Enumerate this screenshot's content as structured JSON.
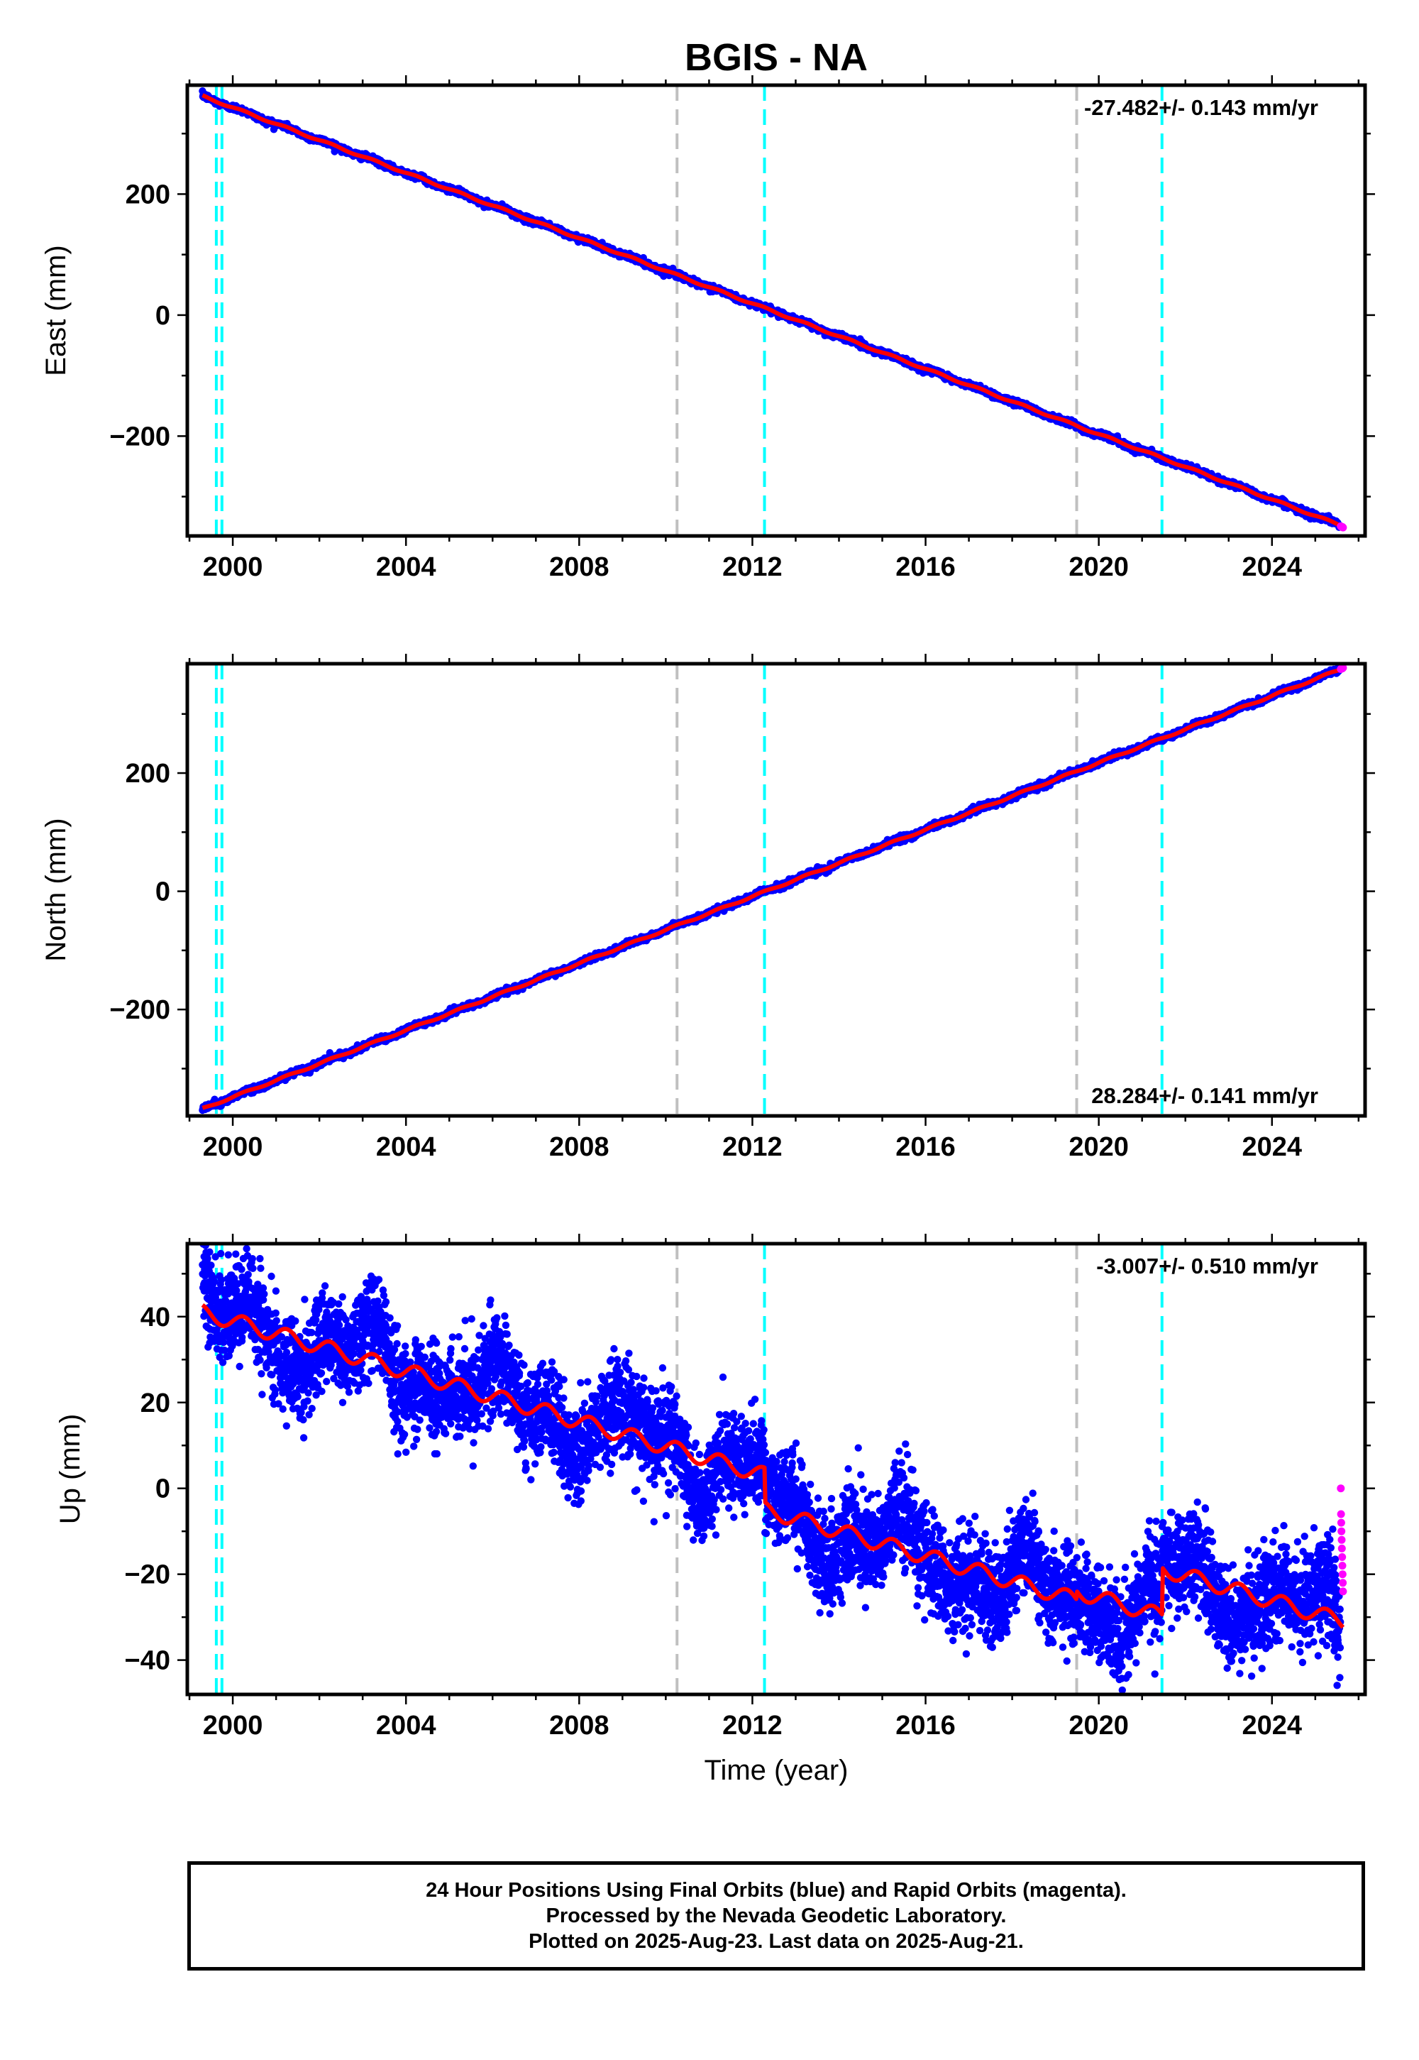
{
  "title": "BGIS - NA",
  "caption": [
    "24 Hour Positions Using Final Orbits (blue) and Rapid Orbits (magenta).",
    "Processed by the Nevada Geodetic Laboratory.",
    "Plotted on 2025-Aug-23. Last data on 2025-Aug-21."
  ],
  "colors": {
    "final_orbits": "#0000ff",
    "rapid_orbits": "#ff00ff",
    "model_fit": "#ff0000",
    "equipment_change_lines": "#00ffff",
    "other_event_lines": "#c0c0c0"
  },
  "chart_data": [
    {
      "type": "scatter",
      "panel": "east",
      "ylabel": "East (mm)",
      "xlabel": "",
      "annotation": "-27.482+/- 0.143 mm/yr",
      "xlim": [
        1998.95,
        2026.15
      ],
      "ylim": [
        -365,
        380
      ],
      "xticks": [
        2000,
        2004,
        2008,
        2012,
        2016,
        2020,
        2024
      ],
      "yticks": [
        -200,
        0,
        200
      ],
      "ytick_labels": [
        "−200",
        "0",
        "200"
      ],
      "x_start": 1999.3,
      "x_end": 2025.64,
      "value_at_start": 362,
      "value_at_end": -349,
      "scatter_noise_mm": 2.5,
      "seasonal_amplitude_mm": 1.5,
      "offsets": [],
      "rapid_values": [
        -349,
        -350,
        -350,
        -351
      ],
      "vertical_lines_cyan": [
        1999.62,
        1999.75,
        2012.28,
        2021.46
      ],
      "vertical_lines_gray": [
        2010.26,
        2019.49
      ],
      "grid": false
    },
    {
      "type": "scatter",
      "panel": "north",
      "ylabel": "North (mm)",
      "xlabel": "",
      "annotation": "28.284+/- 0.141 mm/yr",
      "xlim": [
        1998.95,
        2026.15
      ],
      "ylim": [
        -380,
        385
      ],
      "xticks": [
        2000,
        2004,
        2008,
        2012,
        2016,
        2020,
        2024
      ],
      "yticks": [
        -200,
        0,
        200
      ],
      "ytick_labels": [
        "−200",
        "0",
        "200"
      ],
      "x_start": 1999.3,
      "x_end": 2025.64,
      "value_at_start": -368,
      "value_at_end": 377,
      "scatter_noise_mm": 2.5,
      "seasonal_amplitude_mm": 1.5,
      "offsets": [],
      "rapid_values": [
        376,
        377,
        377,
        378
      ],
      "vertical_lines_cyan": [
        1999.62,
        1999.75,
        2012.28,
        2021.46
      ],
      "vertical_lines_gray": [
        2010.26,
        2019.49
      ],
      "grid": false
    },
    {
      "type": "scatter",
      "panel": "up",
      "ylabel": "Up (mm)",
      "xlabel": "Time (year)",
      "annotation": "-3.007+/- 0.510 mm/yr",
      "xlim": [
        1998.95,
        2026.15
      ],
      "ylim": [
        -48,
        57
      ],
      "xticks": [
        2000,
        2004,
        2008,
        2012,
        2016,
        2020,
        2024
      ],
      "yticks": [
        -40,
        -20,
        0,
        20,
        40
      ],
      "ytick_labels": [
        "−40",
        "−20",
        "0",
        "20",
        "40"
      ],
      "x_start": 1999.3,
      "x_end": 2025.64,
      "value_at_start": 41,
      "value_at_end": -31,
      "scatter_noise_mm": 5.5,
      "seasonal_amplitude_mm": 1.8,
      "offsets": [
        {
          "year": 2012.28,
          "size_mm": -8
        },
        {
          "year": 2019.49,
          "size_mm": 2
        },
        {
          "year": 2021.46,
          "size_mm": 11
        }
      ],
      "rapid_values": [
        0,
        -6,
        -8,
        -10,
        -12,
        -14,
        -16,
        -18,
        -20,
        -22,
        -24
      ],
      "vertical_lines_cyan": [
        1999.62,
        1999.75,
        2012.28,
        2021.46
      ],
      "vertical_lines_gray": [
        2010.26,
        2019.49
      ],
      "grid": false
    }
  ]
}
